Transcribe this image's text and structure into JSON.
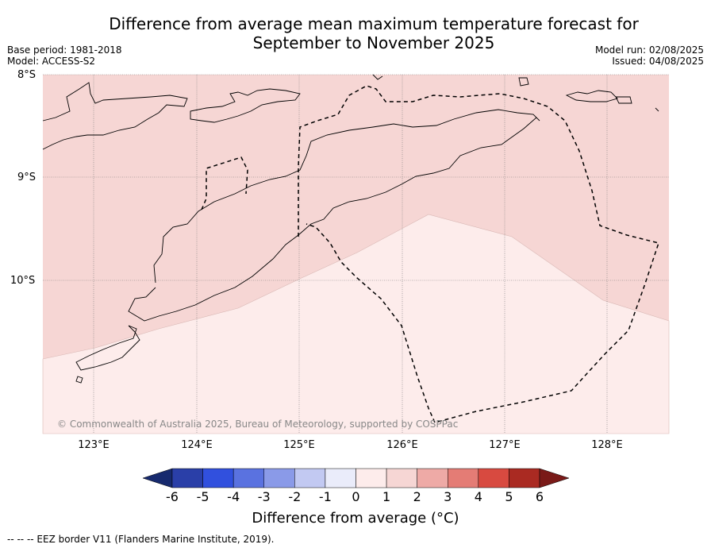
{
  "title_line1": "Difference from average mean maximum temperature forecast for",
  "title_line2": "September to November 2025",
  "base_period": "Base period: 1981-2018",
  "model": "Model: ACCESS-S2",
  "model_run": "Model run: 02/08/2025",
  "issued": "Issued: 04/08/2025",
  "lat_labels": [
    "8°S",
    "9°S",
    "10°S"
  ],
  "lon_labels": [
    "123°E",
    "124°E",
    "125°E",
    "126°E",
    "127°E",
    "128°E"
  ],
  "copyright": "© Commonwealth of Australia 2025, Bureau of Meteorology, supported by COSPPac",
  "colorbar": {
    "ticks": [
      "-6",
      "-5",
      "-4",
      "-3",
      "-2",
      "-1",
      "0",
      "1",
      "2",
      "3",
      "4",
      "5",
      "6"
    ],
    "colors": [
      "#172a6e",
      "#2a3fa8",
      "#3150de",
      "#5a72e0",
      "#8a9ae8",
      "#c2c9f2",
      "#eaecfa",
      "#fdeceb",
      "#f6d6d4",
      "#eeaaa6",
      "#e47c75",
      "#d84a40",
      "#aa2a22",
      "#7a1a18"
    ],
    "label": "Difference from average (°C)"
  },
  "map_fills": {
    "zero_to_one": "#fdeceb",
    "one_to_two": "#f6d6d4"
  },
  "footer": "-- -- -- EEZ border V11 (Flanders Marine Institute, 2019)."
}
